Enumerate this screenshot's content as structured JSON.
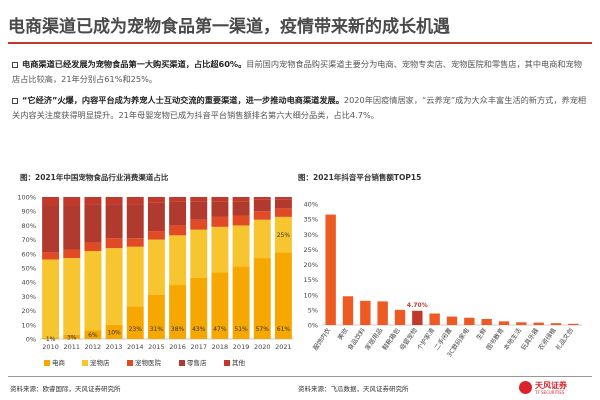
{
  "header": {
    "title": "电商渠道已成为宠物食品第一渠道，疫情带来新的成长机遇"
  },
  "bullets": [
    {
      "bold": "电商渠道已经发展为宠物食品第一大购买渠道，占比超60%。",
      "text": "目前国内宠物食品购买渠道主要分为电商、宠物专卖店、宠物医院和零售店，其中电商和宠物店占比较高，21年分别占61%和25%。"
    },
    {
      "bold": "“它经济”火爆，内容平台成为养宠人士互动交流的重要渠道，进一步推动电商渠道发展。",
      "text": "2020年因疫情居家，“云养宠”成为大众丰富生活的新方式，养宠相关内容关注度获得明显提升。21年母婴宠物已成为抖音平台销售额排名第六大细分品类，占比4.7%。"
    }
  ],
  "left_chart": {
    "caption": "图：2021年中国宠物食品行业消费渠道占比",
    "source": "资料来源：欧睿国际，天风证券研究所"
  },
  "right_chart": {
    "caption": "图：2021年抖音平台销售额TOP15",
    "source": "资料来源：飞瓜数据，天风证券研究所"
  },
  "logo": {
    "name": "天风证券",
    "sub": "TF SECURITIES"
  },
  "colors": {
    "ecommerce": "#f6a800",
    "petstore": "#f7c530",
    "hospital": "#e04a25",
    "retail": "#b03a2e",
    "other": "#c0392b",
    "bar": "#ee5a24",
    "highlight_bar": "#c0392b"
  },
  "chart_data": [
    {
      "type": "bar",
      "stacked": true,
      "categories": [
        "2010",
        "2011",
        "2012",
        "2013",
        "2014",
        "2015",
        "2016",
        "2017",
        "2018",
        "2019",
        "2020",
        "2021"
      ],
      "series": [
        {
          "name": "电商",
          "values": [
            1,
            3,
            6,
            10,
            23,
            31,
            38,
            43,
            47,
            51,
            57,
            61
          ]
        },
        {
          "name": "宠物店",
          "values": [
            55,
            54,
            56,
            54,
            42,
            39,
            35,
            34,
            32,
            29,
            27,
            25
          ]
        },
        {
          "name": "宠物医院",
          "values": [
            5,
            6,
            6,
            7,
            6,
            6,
            7,
            7,
            7,
            7,
            6,
            6
          ]
        },
        {
          "name": "零售店",
          "values": [
            33,
            31,
            27,
            24,
            24,
            20,
            17,
            13,
            11,
            10,
            8,
            6
          ]
        },
        {
          "name": "其他",
          "values": [
            6,
            6,
            5,
            5,
            5,
            4,
            3,
            3,
            3,
            3,
            2,
            2
          ]
        }
      ],
      "data_labels": {
        "电商": [
          "1%",
          "3%",
          "6%",
          "10%",
          "23%",
          "31%",
          "38%",
          "43%",
          "47%",
          "51%",
          "57%",
          "61%"
        ],
        "宠物店_2021": "25%"
      },
      "ylim": [
        0,
        100
      ],
      "yticks": [
        "0%",
        "10%",
        "20%",
        "30%",
        "40%",
        "50%",
        "60%",
        "70%",
        "80%",
        "90%",
        "100%"
      ],
      "legend": "bottom",
      "grid": false
    },
    {
      "type": "bar",
      "categories": [
        "服饰内衣",
        "美妆",
        "食品饮料",
        "家居用品",
        "鞋靴箱包",
        "母婴宠物",
        "个护家清",
        "二手闲置",
        "3C数码家电",
        "生鲜",
        "图书教育",
        "本地生活",
        "玩具乐器",
        "农资绿植",
        "礼品文创"
      ],
      "values": [
        36.5,
        9.5,
        8.0,
        7.8,
        5.0,
        4.7,
        3.8,
        2.8,
        2.4,
        2.0,
        1.2,
        0.9,
        0.8,
        0.6,
        0.4
      ],
      "highlight": {
        "category": "母婴宠物",
        "label": "4.70%"
      },
      "ylim": [
        0,
        40
      ],
      "yticks": [
        "0%",
        "5%",
        "10%",
        "15%",
        "20%",
        "25%",
        "30%",
        "35%",
        "40%"
      ],
      "grid": false
    }
  ]
}
